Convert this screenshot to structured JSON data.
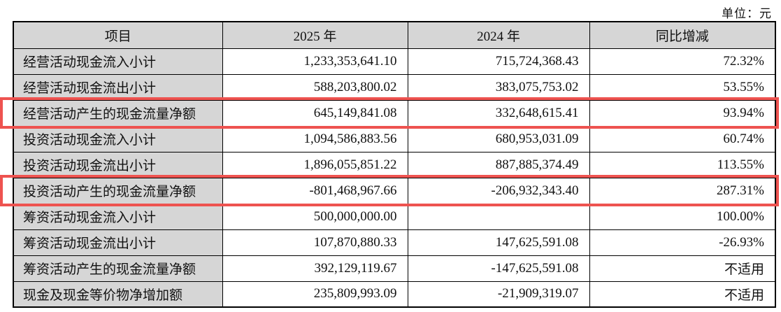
{
  "unit_label": "单位：元",
  "colors": {
    "header_bg": "#d6d6d6",
    "label_bg": "#d6d6d6",
    "highlight_red": "#ee5350",
    "border": "#000000"
  },
  "table": {
    "columns": [
      "项目",
      "2025 年",
      "2024 年",
      "同比增减"
    ],
    "rows": [
      {
        "item": "经营活动现金流入小计",
        "y2025": "1,233,353,641.10",
        "y2024": "715,724,368.43",
        "change": "72.32%",
        "highlighted": false
      },
      {
        "item": "经营活动现金流出小计",
        "y2025": "588,203,800.02",
        "y2024": "383,075,753.02",
        "change": "53.55%",
        "highlighted": false
      },
      {
        "item": "经营活动产生的现金流量净额",
        "y2025": "645,149,841.08",
        "y2024": "332,648,615.41",
        "change": "93.94%",
        "highlighted": true
      },
      {
        "item": "投资活动现金流入小计",
        "y2025": "1,094,586,883.56",
        "y2024": "680,953,031.09",
        "change": "60.74%",
        "highlighted": false
      },
      {
        "item": "投资活动现金流出小计",
        "y2025": "1,896,055,851.22",
        "y2024": "887,885,374.49",
        "change": "113.55%",
        "highlighted": false
      },
      {
        "item": "投资活动产生的现金流量净额",
        "y2025": "-801,468,967.66",
        "y2024": "-206,932,343.40",
        "change": "287.31%",
        "highlighted": true
      },
      {
        "item": "筹资活动现金流入小计",
        "y2025": "500,000,000.00",
        "y2024": "",
        "change": "100.00%",
        "highlighted": false
      },
      {
        "item": "筹资活动现金流出小计",
        "y2025": "107,870,880.33",
        "y2024": "147,625,591.08",
        "change": "-26.93%",
        "highlighted": false
      },
      {
        "item": "筹资活动产生的现金流量净额",
        "y2025": "392,129,119.67",
        "y2024": "-147,625,591.08",
        "change": "不适用",
        "highlighted": false
      },
      {
        "item": "现金及现金等价物净增加额",
        "y2025": "235,809,993.09",
        "y2024": "-21,909,319.07",
        "change": "不适用",
        "highlighted": false
      }
    ]
  }
}
